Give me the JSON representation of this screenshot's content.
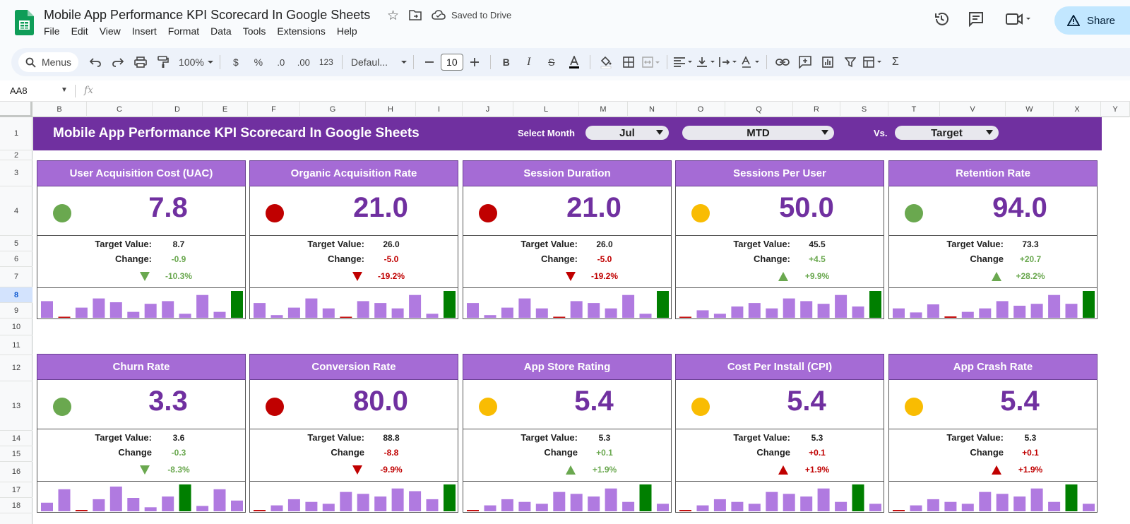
{
  "doc": {
    "title": "Mobile App Performance KPI Scorecard In Google Sheets",
    "saved_status": "Saved to Drive",
    "share_label": "Share"
  },
  "menu": [
    "File",
    "Edit",
    "View",
    "Insert",
    "Format",
    "Data",
    "Tools",
    "Extensions",
    "Help"
  ],
  "toolbar": {
    "search_label": "Menus",
    "zoom": "100%",
    "currency": "$",
    "percent": "%",
    "dec_less": ".0",
    "dec_more": ".00",
    "number_format": "123",
    "font": "Defaul...",
    "font_size": "10"
  },
  "formula": {
    "name_box": "AA8",
    "fx": "fx"
  },
  "columns": [
    "B",
    "C",
    "D",
    "E",
    "F",
    "G",
    "H",
    "I",
    "J",
    "L",
    "M",
    "N",
    "O",
    "Q",
    "R",
    "S",
    "T",
    "V",
    "W",
    "X",
    "Y"
  ],
  "rows": [
    "1",
    "2",
    "3",
    "4",
    "5",
    "6",
    "7",
    "8",
    "9",
    "10",
    "11",
    "12",
    "13",
    "14",
    "15",
    "16",
    "17",
    "18"
  ],
  "selected_row": "8",
  "banner": {
    "title": "Mobile App Performance KPI Scorecard In Google Sheets",
    "select_month_label": "Select Month",
    "month": "Jul",
    "period": "MTD",
    "vs_label": "Vs.",
    "compare": "Target"
  },
  "colors": {
    "purple": "#7030a0",
    "card_header": "#a56bd5",
    "green": "#6aa84f",
    "red": "#c00000",
    "yellow": "#f9bc02",
    "bar": "#b07ae0",
    "bar_last": "#007f00"
  },
  "cards": [
    {
      "title": "User Acquisition Cost (UAC)",
      "status": "green",
      "value": "7.8",
      "target_label": "Target Value:",
      "target": "8.7",
      "change_label": "Change:",
      "change": "-0.9",
      "change_color": "green",
      "arrow": "down",
      "pct": "-10.3%",
      "bars": [
        0.62,
        0.03,
        0.38,
        0.72,
        0.58,
        0.22,
        0.52,
        0.62,
        0.15,
        0.85,
        0.22,
        1.0
      ]
    },
    {
      "title": "Organic Acquisition Rate",
      "status": "red",
      "value": "21.0",
      "target_label": "Target Value:",
      "target": "26.0",
      "change_label": "Change:",
      "change": "-5.0",
      "change_color": "red",
      "arrow": "down",
      "pct": "-19.2%",
      "bars": [
        0.55,
        0.1,
        0.38,
        0.72,
        0.35,
        0.03,
        0.62,
        0.55,
        0.35,
        0.85,
        0.15,
        1.0
      ]
    },
    {
      "title": "Session Duration",
      "status": "red",
      "value": "21.0",
      "target_label": "Target Value:",
      "target": "26.0",
      "change_label": "Change:",
      "change": "-5.0",
      "change_color": "red",
      "arrow": "down",
      "pct": "-19.2%",
      "bars": [
        0.55,
        0.1,
        0.38,
        0.72,
        0.35,
        0.03,
        0.62,
        0.55,
        0.35,
        0.85,
        0.15,
        1.0
      ]
    },
    {
      "title": "Sessions Per User",
      "status": "yellow",
      "value": "50.0",
      "target_label": "Target Value:",
      "target": "45.5",
      "change_label": "Change:",
      "change": "+4.5",
      "change_color": "green",
      "arrow": "up",
      "pct": "+9.9%",
      "bars": [
        0.03,
        0.28,
        0.15,
        0.42,
        0.55,
        0.35,
        0.72,
        0.62,
        0.52,
        0.85,
        0.42,
        1.0
      ]
    },
    {
      "title": "Retention Rate",
      "status": "green",
      "value": "94.0",
      "target_label": "Target Value:",
      "target": "73.3",
      "change_label": "Change",
      "change": "+20.7",
      "change_color": "green",
      "arrow": "up",
      "pct": "+28.2%",
      "bars": [
        0.35,
        0.2,
        0.5,
        0.05,
        0.22,
        0.35,
        0.62,
        0.45,
        0.52,
        0.85,
        0.52,
        1.0
      ]
    },
    {
      "title": "Churn Rate",
      "status": "green",
      "value": "3.3",
      "target_label": "Target Value:",
      "target": "3.6",
      "change_label": "Change",
      "change": "-0.3",
      "change_color": "green",
      "arrow": "down",
      "pct": "-8.3%",
      "bars": [
        0.32,
        0.82,
        0.05,
        0.45,
        0.92,
        0.5,
        0.15,
        0.55,
        1.0,
        0.2,
        0.82,
        0.4
      ]
    },
    {
      "title": "Conversion Rate",
      "status": "red",
      "value": "80.0",
      "target_label": "Target Value:",
      "target": "88.8",
      "change_label": "Change",
      "change": "-8.8",
      "change_color": "red",
      "arrow": "down",
      "pct": "-9.9%",
      "bars": [
        0.05,
        0.22,
        0.45,
        0.35,
        0.28,
        0.72,
        0.65,
        0.55,
        0.85,
        0.75,
        0.45,
        1.0
      ]
    },
    {
      "title": "App Store Rating",
      "status": "yellow",
      "value": "5.4",
      "target_label": "Target Value:",
      "target": "5.3",
      "change_label": "Change",
      "change": "+0.1",
      "change_color": "green",
      "arrow": "up",
      "pct": "+1.9%",
      "bars": [
        0.05,
        0.22,
        0.45,
        0.35,
        0.28,
        0.72,
        0.65,
        0.55,
        0.85,
        0.35,
        1.0,
        0.28
      ]
    },
    {
      "title": "Cost Per Install (CPI)",
      "status": "yellow",
      "value": "5.4",
      "target_label": "Target Value:",
      "target": "5.3",
      "change_label": "Change",
      "change": "+0.1",
      "change_color": "red",
      "arrow": "up",
      "pct": "+1.9%",
      "bars": [
        0.05,
        0.22,
        0.45,
        0.35,
        0.28,
        0.72,
        0.65,
        0.55,
        0.85,
        0.35,
        1.0,
        0.28
      ]
    },
    {
      "title": "App Crash Rate",
      "status": "yellow",
      "value": "5.4",
      "target_label": "Target Value:",
      "target": "5.3",
      "change_label": "Change",
      "change": "+0.1",
      "change_color": "red",
      "arrow": "up",
      "pct": "+1.9%",
      "bars": [
        0.05,
        0.22,
        0.45,
        0.35,
        0.28,
        0.72,
        0.65,
        0.55,
        0.85,
        0.35,
        1.0,
        0.28
      ]
    }
  ]
}
